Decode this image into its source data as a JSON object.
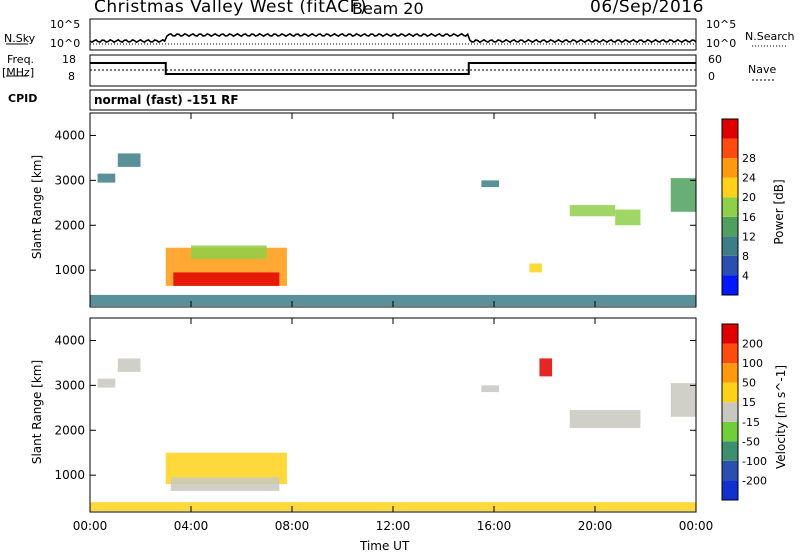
{
  "header": {
    "title": "Christmas Valley West (fitACF)",
    "beam": "Beam 20",
    "date": "06/Sep/2016"
  },
  "side_labels": {
    "nsky": "N.Sky",
    "freq": "Freq.",
    "freq_unit": "[MHz]",
    "cpid": "CPID",
    "nsearch": "N.Search",
    "nave": "Nave"
  },
  "noise_axis": {
    "left": [
      "10^5",
      "10^0"
    ],
    "right": [
      "10^5",
      "10^0"
    ]
  },
  "freq_axis": {
    "left": [
      "18",
      "8"
    ],
    "right": [
      "60",
      "0"
    ]
  },
  "cpid_text": "normal (fast) -151 RF",
  "chart_data": [
    {
      "type": "heatmap",
      "name": "power",
      "ylabel": "Slant Range [km]",
      "ylim": [
        180,
        4500
      ],
      "yticks": [
        "4000",
        "3000",
        "2000",
        "1000"
      ],
      "xlim_hours": [
        0,
        24
      ],
      "xticks": [
        "00:00",
        "04:00",
        "08:00",
        "12:00",
        "16:00",
        "20:00",
        "00:00"
      ],
      "xlabel": "Time UT",
      "colorbar_label": "Power [dB]",
      "colorbar_ticks": [
        "28",
        "24",
        "20",
        "16",
        "12",
        "8",
        "4"
      ],
      "colors": [
        "#0018ff",
        "#2a4fb0",
        "#3d7d86",
        "#4fa05f",
        "#8fcf4a",
        "#ffd21a",
        "#ff9a10",
        "#ff4a10",
        "#e00000"
      ],
      "regions": [
        {
          "t0": 0.3,
          "t1": 1.0,
          "r0": 2950,
          "r1": 3150,
          "level": 2
        },
        {
          "t0": 1.1,
          "t1": 2.0,
          "r0": 3300,
          "r1": 3600,
          "level": 2
        },
        {
          "t0": 3.0,
          "t1": 7.8,
          "r0": 650,
          "r1": 1500,
          "level": 6
        },
        {
          "t0": 3.3,
          "t1": 7.5,
          "r0": 650,
          "r1": 950,
          "level": 8
        },
        {
          "t0": 4.0,
          "t1": 7.0,
          "r0": 1250,
          "r1": 1550,
          "level": 4
        },
        {
          "t0": 15.5,
          "t1": 16.2,
          "r0": 2850,
          "r1": 3000,
          "level": 2
        },
        {
          "t0": 17.4,
          "t1": 17.9,
          "r0": 950,
          "r1": 1150,
          "level": 5
        },
        {
          "t0": 19.0,
          "t1": 20.8,
          "r0": 2200,
          "r1": 2450,
          "level": 4
        },
        {
          "t0": 20.8,
          "t1": 21.8,
          "r0": 2000,
          "r1": 2350,
          "level": 4
        },
        {
          "t0": 23.0,
          "t1": 24.0,
          "r0": 2300,
          "r1": 3050,
          "level": 3
        },
        {
          "t0": 0.0,
          "t1": 24.0,
          "r0": 200,
          "r1": 450,
          "level": 2
        }
      ]
    },
    {
      "type": "heatmap",
      "name": "velocity",
      "ylabel": "Slant Range [km]",
      "ylim": [
        180,
        4500
      ],
      "yticks": [
        "4000",
        "3000",
        "2000",
        "1000"
      ],
      "xlim_hours": [
        0,
        24
      ],
      "xticks": [
        "00:00",
        "04:00",
        "08:00",
        "12:00",
        "16:00",
        "20:00",
        "00:00"
      ],
      "xlabel": "Time UT",
      "colorbar_label": "Velocity [m s^-1]",
      "colorbar_ticks": [
        "200",
        "100",
        "50",
        "15",
        "-15",
        "-50",
        "-100",
        "-200"
      ],
      "colors": [
        "#1030d0",
        "#2a4fb0",
        "#3d8f6f",
        "#6fce3a",
        "#c8c8c0",
        "#ffd21a",
        "#ff9a10",
        "#ff4a10",
        "#e00000"
      ],
      "regions": [
        {
          "t0": 0.3,
          "t1": 1.0,
          "r0": 2950,
          "r1": 3150,
          "level": 4
        },
        {
          "t0": 1.1,
          "t1": 2.0,
          "r0": 3300,
          "r1": 3600,
          "level": 4
        },
        {
          "t0": 3.0,
          "t1": 7.8,
          "r0": 800,
          "r1": 1500,
          "level": 5
        },
        {
          "t0": 3.2,
          "t1": 7.5,
          "r0": 650,
          "r1": 950,
          "level": 4
        },
        {
          "t0": 17.8,
          "t1": 18.3,
          "r0": 3200,
          "r1": 3600,
          "level": 8
        },
        {
          "t0": 15.5,
          "t1": 16.2,
          "r0": 2850,
          "r1": 3000,
          "level": 4
        },
        {
          "t0": 19.0,
          "t1": 21.8,
          "r0": 2050,
          "r1": 2450,
          "level": 4
        },
        {
          "t0": 23.0,
          "t1": 24.0,
          "r0": 2300,
          "r1": 3050,
          "level": 4
        },
        {
          "t0": 0.0,
          "t1": 24.0,
          "r0": 200,
          "r1": 400,
          "level": 5
        }
      ]
    }
  ]
}
